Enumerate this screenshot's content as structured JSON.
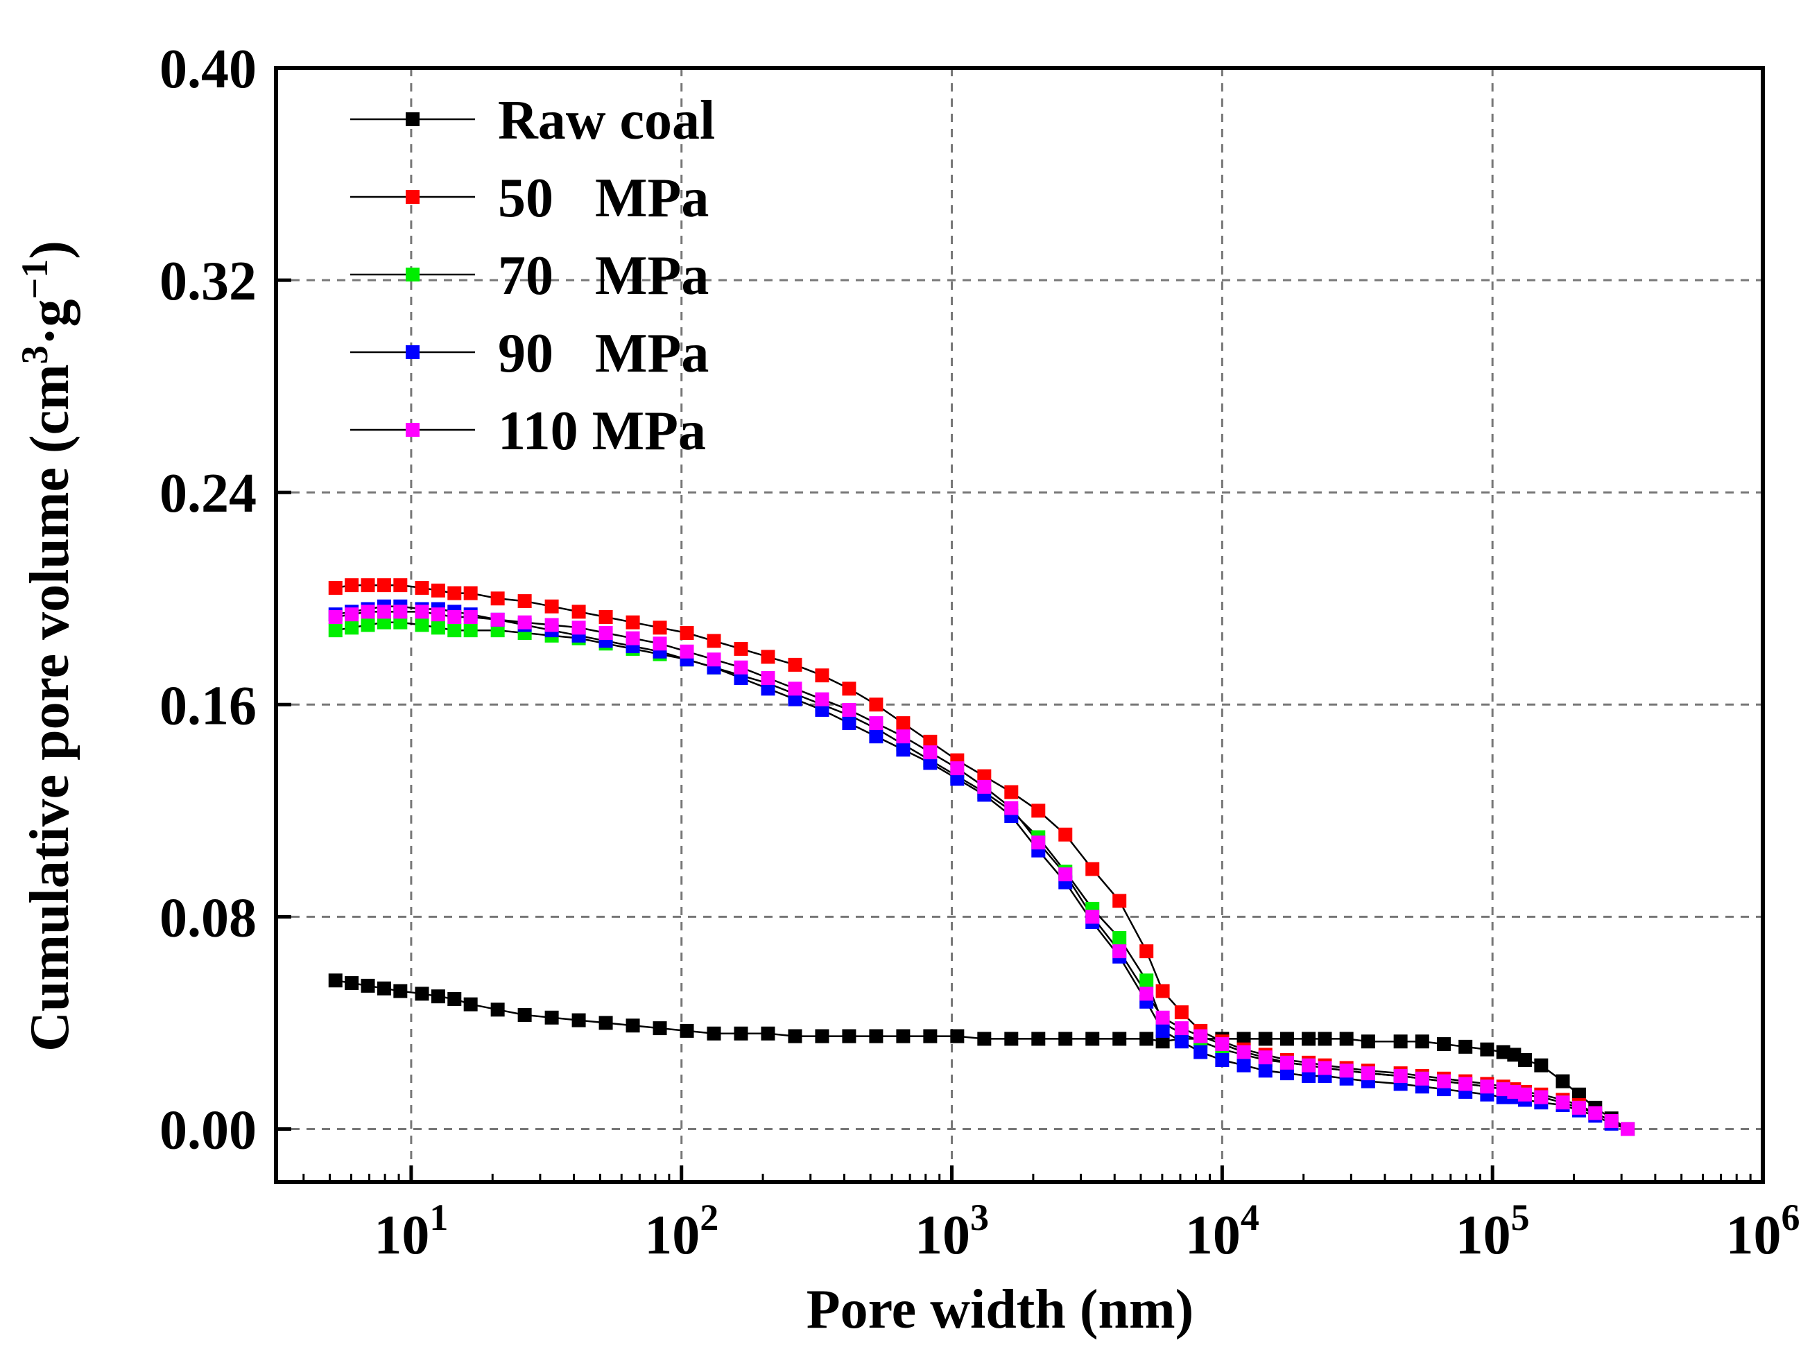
{
  "chart_data": {
    "type": "line",
    "xscale": "log",
    "xlim_log10": [
      0.5,
      6
    ],
    "ylim": [
      -0.02,
      0.4
    ],
    "grid": true,
    "legend_position": "top-left",
    "xlabel": "Pore width (nm)",
    "ylabel": {
      "prefix": "Cumulative pore volume (cm",
      "sup1": "3",
      "mid": "·g",
      "sup2": "−1",
      "suffix": ")"
    },
    "y_ticks": [
      {
        "value": 0.0,
        "label": "0.00"
      },
      {
        "value": 0.08,
        "label": "0.08"
      },
      {
        "value": 0.16,
        "label": "0.16"
      },
      {
        "value": 0.24,
        "label": "0.24"
      },
      {
        "value": 0.32,
        "label": "0.32"
      },
      {
        "value": 0.4,
        "label": "0.40"
      }
    ],
    "x_ticks": [
      {
        "exp": 1,
        "base": "10",
        "sup": "1"
      },
      {
        "exp": 2,
        "base": "10",
        "sup": "2"
      },
      {
        "exp": 3,
        "base": "10",
        "sup": "3"
      },
      {
        "exp": 4,
        "base": "10",
        "sup": "4"
      },
      {
        "exp": 5,
        "base": "10",
        "sup": "5"
      },
      {
        "exp": 6,
        "base": "10",
        "sup": "6"
      }
    ],
    "legend": [
      {
        "label": "Raw coal",
        "color": "#000000"
      },
      {
        "label": "50   MPa",
        "color": "#ff0000"
      },
      {
        "label": "70   MPa",
        "color": "#00ee00"
      },
      {
        "label": "90   MPa",
        "color": "#0000ff"
      },
      {
        "label": "110 MPa",
        "color": "#ff00ff"
      }
    ],
    "series": [
      {
        "name": "Raw coal",
        "color": "#000000",
        "log10x": [
          0.72,
          0.78,
          0.84,
          0.9,
          0.96,
          1.04,
          1.1,
          1.16,
          1.22,
          1.32,
          1.42,
          1.52,
          1.62,
          1.72,
          1.82,
          1.92,
          2.02,
          2.12,
          2.22,
          2.32,
          2.42,
          2.52,
          2.62,
          2.72,
          2.82,
          2.92,
          3.02,
          3.12,
          3.22,
          3.32,
          3.42,
          3.52,
          3.62,
          3.72,
          3.78,
          3.85,
          3.92,
          4.0,
          4.08,
          4.16,
          4.24,
          4.32,
          4.38,
          4.46,
          4.54,
          4.66,
          4.74,
          4.82,
          4.9,
          4.98,
          5.04,
          5.08,
          5.12,
          5.18,
          5.26,
          5.32,
          5.38,
          5.44,
          5.5
        ],
        "values": [
          0.056,
          0.055,
          0.054,
          0.053,
          0.052,
          0.051,
          0.05,
          0.049,
          0.047,
          0.045,
          0.043,
          0.042,
          0.041,
          0.04,
          0.039,
          0.038,
          0.037,
          0.036,
          0.036,
          0.036,
          0.035,
          0.035,
          0.035,
          0.035,
          0.035,
          0.035,
          0.035,
          0.034,
          0.034,
          0.034,
          0.034,
          0.034,
          0.034,
          0.034,
          0.033,
          0.034,
          0.034,
          0.034,
          0.034,
          0.034,
          0.034,
          0.034,
          0.034,
          0.034,
          0.033,
          0.033,
          0.033,
          0.032,
          0.031,
          0.03,
          0.029,
          0.028,
          0.026,
          0.024,
          0.018,
          0.013,
          0.008,
          0.004,
          0.0
        ]
      },
      {
        "name": "50 MPa",
        "color": "#ff0000",
        "log10x": [
          0.72,
          0.78,
          0.84,
          0.9,
          0.96,
          1.04,
          1.1,
          1.16,
          1.22,
          1.32,
          1.42,
          1.52,
          1.62,
          1.72,
          1.82,
          1.92,
          2.02,
          2.12,
          2.22,
          2.32,
          2.42,
          2.52,
          2.62,
          2.72,
          2.82,
          2.92,
          3.02,
          3.12,
          3.22,
          3.32,
          3.42,
          3.52,
          3.62,
          3.72,
          3.78,
          3.85,
          3.92,
          4.0,
          4.08,
          4.16,
          4.24,
          4.32,
          4.38,
          4.46,
          4.54,
          4.66,
          4.74,
          4.82,
          4.9,
          4.98,
          5.04,
          5.08,
          5.12,
          5.18,
          5.26,
          5.32,
          5.38,
          5.44,
          5.5
        ],
        "values": [
          0.204,
          0.205,
          0.205,
          0.205,
          0.205,
          0.204,
          0.203,
          0.202,
          0.202,
          0.2,
          0.199,
          0.197,
          0.195,
          0.193,
          0.191,
          0.189,
          0.187,
          0.184,
          0.181,
          0.178,
          0.175,
          0.171,
          0.166,
          0.16,
          0.153,
          0.146,
          0.139,
          0.133,
          0.127,
          0.12,
          0.111,
          0.098,
          0.086,
          0.067,
          0.052,
          0.044,
          0.037,
          0.033,
          0.03,
          0.028,
          0.026,
          0.025,
          0.024,
          0.023,
          0.022,
          0.021,
          0.02,
          0.019,
          0.018,
          0.017,
          0.016,
          0.015,
          0.014,
          0.013,
          0.011,
          0.009,
          0.006,
          0.003,
          0.0
        ]
      },
      {
        "name": "70 MPa",
        "color": "#00ee00",
        "log10x": [
          0.72,
          0.78,
          0.84,
          0.9,
          0.96,
          1.04,
          1.1,
          1.16,
          1.22,
          1.32,
          1.42,
          1.52,
          1.62,
          1.72,
          1.82,
          1.92,
          2.02,
          2.12,
          2.22,
          2.32,
          2.42,
          2.52,
          2.62,
          2.72,
          2.82,
          2.92,
          3.02,
          3.12,
          3.22,
          3.32,
          3.42,
          3.52,
          3.62,
          3.72,
          3.78,
          3.85,
          3.92,
          4.0,
          4.08,
          4.16,
          4.24,
          4.32,
          4.38,
          4.46,
          4.54,
          4.66,
          4.74,
          4.82,
          4.9,
          4.98,
          5.04,
          5.08,
          5.12,
          5.18,
          5.26,
          5.32,
          5.38,
          5.44,
          5.5
        ],
        "values": [
          0.188,
          0.189,
          0.19,
          0.191,
          0.191,
          0.19,
          0.189,
          0.188,
          0.188,
          0.188,
          0.187,
          0.186,
          0.185,
          0.183,
          0.181,
          0.179,
          0.177,
          0.174,
          0.171,
          0.168,
          0.164,
          0.16,
          0.156,
          0.151,
          0.145,
          0.139,
          0.133,
          0.127,
          0.12,
          0.11,
          0.097,
          0.083,
          0.072,
          0.056,
          0.04,
          0.036,
          0.033,
          0.03,
          0.028,
          0.026,
          0.025,
          0.024,
          0.023,
          0.022,
          0.021,
          0.02,
          0.019,
          0.018,
          0.017,
          0.016,
          0.015,
          0.014,
          0.013,
          0.012,
          0.01,
          0.008,
          0.006,
          0.003,
          0.0
        ]
      },
      {
        "name": "90 MPa",
        "color": "#0000ff",
        "log10x": [
          0.72,
          0.78,
          0.84,
          0.9,
          0.96,
          1.04,
          1.1,
          1.16,
          1.22,
          1.32,
          1.42,
          1.52,
          1.62,
          1.72,
          1.82,
          1.92,
          2.02,
          2.12,
          2.22,
          2.32,
          2.42,
          2.52,
          2.62,
          2.72,
          2.82,
          2.92,
          3.02,
          3.12,
          3.22,
          3.32,
          3.42,
          3.52,
          3.62,
          3.72,
          3.78,
          3.85,
          3.92,
          4.0,
          4.08,
          4.16,
          4.24,
          4.32,
          4.38,
          4.46,
          4.54,
          4.66,
          4.74,
          4.82,
          4.9,
          4.98,
          5.04,
          5.08,
          5.12,
          5.18,
          5.26,
          5.32,
          5.38,
          5.44,
          5.5
        ],
        "values": [
          0.194,
          0.195,
          0.196,
          0.197,
          0.197,
          0.196,
          0.196,
          0.195,
          0.194,
          0.192,
          0.19,
          0.188,
          0.186,
          0.184,
          0.182,
          0.18,
          0.177,
          0.174,
          0.17,
          0.166,
          0.162,
          0.158,
          0.153,
          0.148,
          0.143,
          0.138,
          0.132,
          0.126,
          0.118,
          0.105,
          0.093,
          0.078,
          0.065,
          0.048,
          0.037,
          0.033,
          0.029,
          0.026,
          0.024,
          0.022,
          0.021,
          0.02,
          0.02,
          0.019,
          0.018,
          0.017,
          0.016,
          0.015,
          0.014,
          0.013,
          0.012,
          0.012,
          0.011,
          0.01,
          0.009,
          0.007,
          0.005,
          0.002,
          0.0
        ]
      },
      {
        "name": "110 MPa",
        "color": "#ff00ff",
        "log10x": [
          0.72,
          0.78,
          0.84,
          0.9,
          0.96,
          1.04,
          1.1,
          1.16,
          1.22,
          1.32,
          1.42,
          1.52,
          1.62,
          1.72,
          1.82,
          1.92,
          2.02,
          2.12,
          2.22,
          2.32,
          2.42,
          2.52,
          2.62,
          2.72,
          2.82,
          2.92,
          3.02,
          3.12,
          3.22,
          3.32,
          3.42,
          3.52,
          3.62,
          3.72,
          3.78,
          3.85,
          3.92,
          4.0,
          4.08,
          4.16,
          4.24,
          4.32,
          4.38,
          4.46,
          4.54,
          4.66,
          4.74,
          4.82,
          4.9,
          4.98,
          5.04,
          5.08,
          5.12,
          5.18,
          5.26,
          5.32,
          5.38,
          5.44,
          5.5
        ],
        "values": [
          0.193,
          0.194,
          0.195,
          0.195,
          0.195,
          0.195,
          0.194,
          0.193,
          0.193,
          0.192,
          0.191,
          0.19,
          0.189,
          0.187,
          0.185,
          0.183,
          0.18,
          0.177,
          0.174,
          0.17,
          0.166,
          0.162,
          0.158,
          0.153,
          0.148,
          0.142,
          0.136,
          0.129,
          0.121,
          0.108,
          0.096,
          0.08,
          0.067,
          0.051,
          0.042,
          0.038,
          0.035,
          0.032,
          0.029,
          0.027,
          0.025,
          0.024,
          0.023,
          0.022,
          0.021,
          0.02,
          0.019,
          0.018,
          0.017,
          0.016,
          0.015,
          0.014,
          0.013,
          0.012,
          0.01,
          0.008,
          0.006,
          0.003,
          0.0
        ]
      }
    ]
  }
}
